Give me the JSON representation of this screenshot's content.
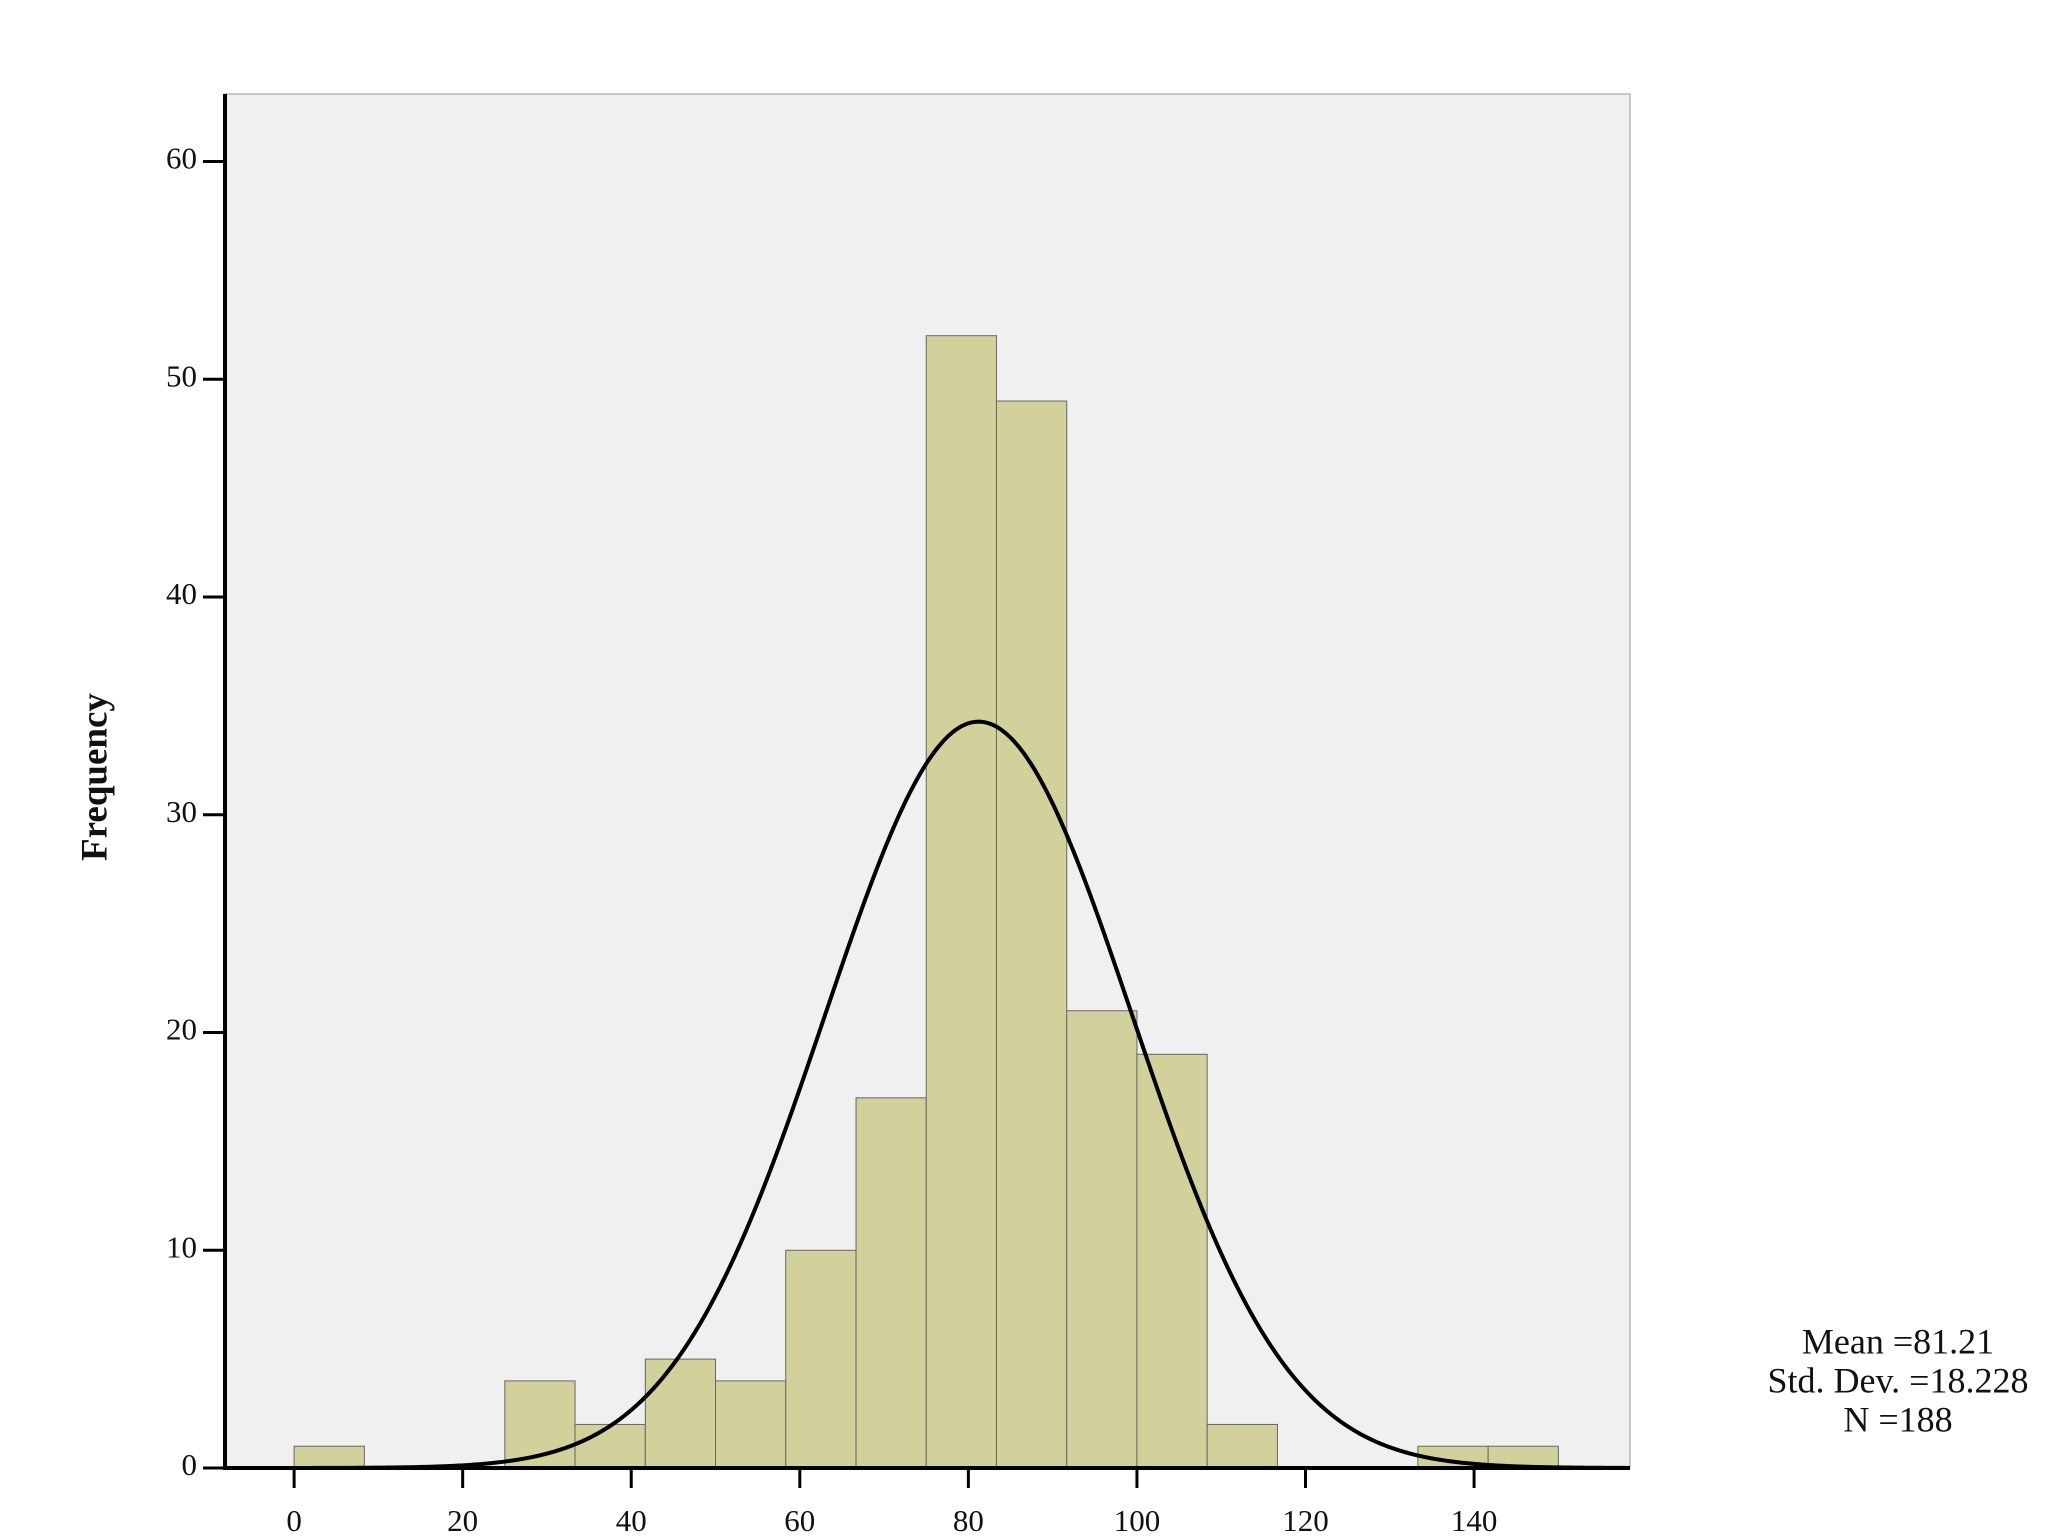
{
  "chart_data": {
    "type": "histogram",
    "y_label": "Frequency",
    "bins": [
      0,
      8.33,
      16.67,
      25,
      33.33,
      41.67,
      50,
      58.33,
      66.67,
      75,
      83.33,
      91.67,
      100,
      108.33,
      116.67,
      125,
      133.33,
      141.67,
      150
    ],
    "values": [
      1,
      0,
      0,
      4,
      2,
      5,
      4,
      10,
      17,
      52,
      49,
      21,
      19,
      2,
      0,
      0,
      1,
      1
    ],
    "color": "#d3d19b",
    "xlim": [
      -8.2,
      158.5
    ],
    "xticks": [
      0,
      20,
      40,
      60,
      80,
      100,
      120,
      140
    ],
    "ylim": [
      0,
      63.1
    ],
    "yticks": [
      0,
      10,
      20,
      30,
      40,
      50,
      60
    ],
    "normal_curve": {
      "mean": 81.21,
      "sd": 18.228,
      "n": 188
    },
    "stats_labels": [
      "Mean =81.21",
      "Std. Dev. =18.228",
      "N =188"
    ]
  }
}
